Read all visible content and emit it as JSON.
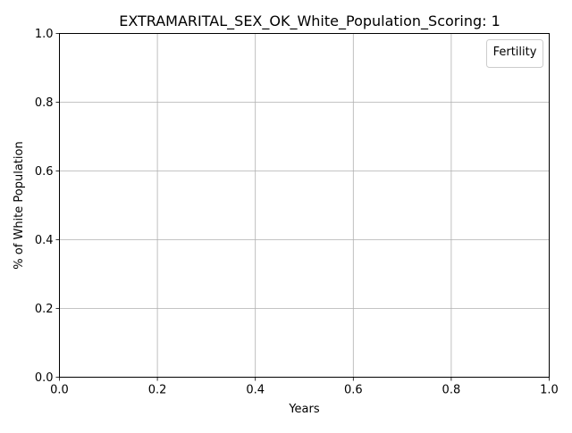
{
  "chart_data": {
    "type": "line",
    "title": "EXTRAMARITAL_SEX_OK_White_Population_Scoring: 1",
    "xlabel": "Years",
    "ylabel": "% of White Population",
    "xlim": [
      0.0,
      1.0
    ],
    "ylim": [
      0.0,
      1.0
    ],
    "xticks": [
      "0.0",
      "0.2",
      "0.4",
      "0.6",
      "0.8",
      "1.0"
    ],
    "yticks": [
      "0.0",
      "0.2",
      "0.4",
      "0.6",
      "0.8",
      "1.0"
    ],
    "grid": true,
    "legend": {
      "title": "Fertility",
      "placement": "top-right",
      "entries": []
    },
    "series": []
  }
}
